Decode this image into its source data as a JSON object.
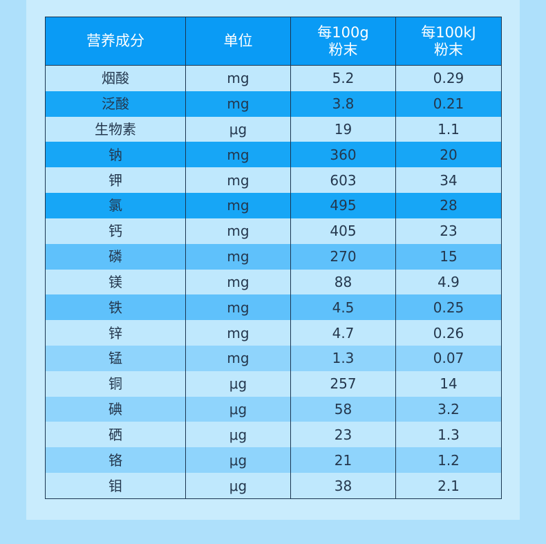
{
  "table": {
    "headers": [
      {
        "line1": "营养成分",
        "line2": ""
      },
      {
        "line1": "单位",
        "line2": ""
      },
      {
        "line1": "每100g",
        "line2": "粉末"
      },
      {
        "line1": "每100kJ",
        "line2": "粉末"
      }
    ],
    "rows": [
      {
        "name": "烟酸",
        "unit": "mg",
        "per100g": "5.2",
        "per100kj": "0.29",
        "shade": "light"
      },
      {
        "name": "泛酸",
        "unit": "mg",
        "per100g": "3.8",
        "per100kj": "0.21",
        "shade": "dark"
      },
      {
        "name": "生物素",
        "unit": "μg",
        "per100g": "19",
        "per100kj": "1.1",
        "shade": "light"
      },
      {
        "name": "钠",
        "unit": "mg",
        "per100g": "360",
        "per100kj": "20",
        "shade": "dark"
      },
      {
        "name": "钾",
        "unit": "mg",
        "per100g": "603",
        "per100kj": "34",
        "shade": "light"
      },
      {
        "name": "氯",
        "unit": "mg",
        "per100g": "495",
        "per100kj": "28",
        "shade": "dark"
      },
      {
        "name": "钙",
        "unit": "mg",
        "per100g": "405",
        "per100kj": "23",
        "shade": "light"
      },
      {
        "name": "磷",
        "unit": "mg",
        "per100g": "270",
        "per100kj": "15",
        "shade": "mid"
      },
      {
        "name": "镁",
        "unit": "mg",
        "per100g": "88",
        "per100kj": "4.9",
        "shade": "light"
      },
      {
        "name": "铁",
        "unit": "mg",
        "per100g": "4.5",
        "per100kj": "0.25",
        "shade": "mid"
      },
      {
        "name": "锌",
        "unit": "mg",
        "per100g": "4.7",
        "per100kj": "0.26",
        "shade": "light"
      },
      {
        "name": "锰",
        "unit": "mg",
        "per100g": "1.3",
        "per100kj": "0.07",
        "shade": "soft"
      },
      {
        "name": "铜",
        "unit": "μg",
        "per100g": "257",
        "per100kj": "14",
        "shade": "light"
      },
      {
        "name": "碘",
        "unit": "μg",
        "per100g": "58",
        "per100kj": "3.2",
        "shade": "soft"
      },
      {
        "name": "硒",
        "unit": "μg",
        "per100g": "23",
        "per100kj": "1.3",
        "shade": "light"
      },
      {
        "name": "铬",
        "unit": "μg",
        "per100g": "21",
        "per100kj": "1.2",
        "shade": "soft"
      },
      {
        "name": "钼",
        "unit": "μg",
        "per100g": "38",
        "per100kj": "2.1",
        "shade": "light"
      }
    ]
  }
}
